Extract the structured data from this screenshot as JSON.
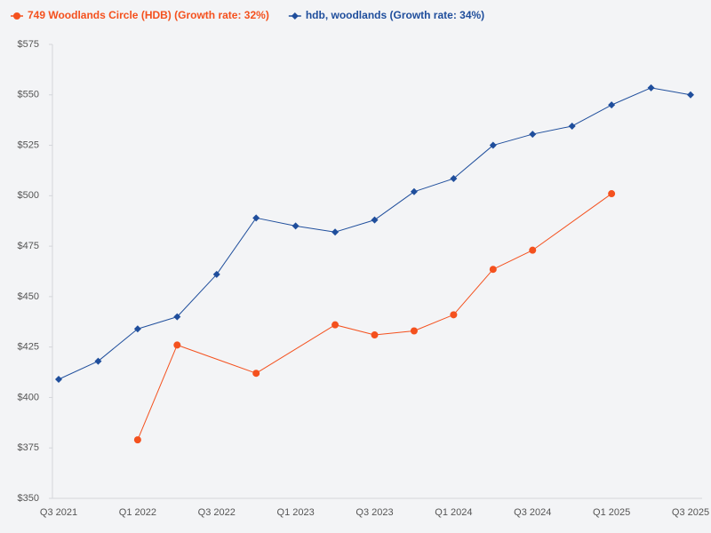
{
  "chart_data": {
    "type": "line",
    "categories": [
      "Q3 2021",
      null,
      "Q1 2022",
      null,
      "Q3 2022",
      null,
      "Q1 2023",
      null,
      "Q3 2023",
      null,
      "Q1 2024",
      null,
      "Q3 2024",
      null,
      "Q1 2025",
      null,
      "Q3 2025"
    ],
    "series": [
      {
        "name": "749 Woodlands Circle (HDB) (Growth rate: 32%)",
        "color": "#f4511e",
        "marker": "circle",
        "values": [
          null,
          null,
          379,
          426,
          null,
          412,
          null,
          436,
          431,
          433,
          441,
          463.5,
          473,
          null,
          501,
          null,
          null
        ]
      },
      {
        "name": "hdb, woodlands (Growth rate: 34%)",
        "color": "#1f4e9c",
        "marker": "diamond",
        "values": [
          409,
          418,
          434,
          440,
          461,
          489,
          485,
          482,
          488,
          502,
          508.5,
          525,
          530.5,
          534.5,
          545,
          553.5,
          550
        ]
      }
    ],
    "ylim": [
      350,
      575
    ],
    "yticks": [
      {
        "value": 350,
        "label": "$350"
      },
      {
        "value": 375,
        "label": "$375"
      },
      {
        "value": 400,
        "label": "$400"
      },
      {
        "value": 425,
        "label": "$425"
      },
      {
        "value": 450,
        "label": "$450"
      },
      {
        "value": 475,
        "label": "$475"
      },
      {
        "value": 500,
        "label": "$500"
      },
      {
        "value": 525,
        "label": "$525"
      },
      {
        "value": 550,
        "label": "$550"
      },
      {
        "value": 575,
        "label": "$575"
      }
    ],
    "grid": false,
    "connect_gaps": true,
    "legend": "top"
  }
}
